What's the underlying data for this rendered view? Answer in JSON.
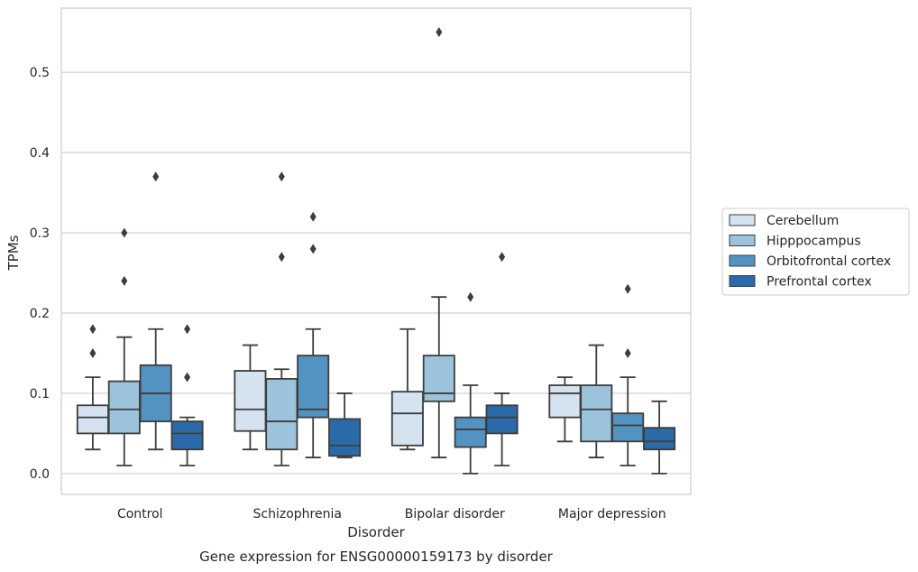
{
  "chart_data": {
    "type": "box",
    "caption": "Gene expression for ENSG00000159173 by disorder",
    "xlabel": "Disorder",
    "ylabel": "TPMs",
    "ylim": [
      -0.026,
      0.58
    ],
    "yticks": [
      0.0,
      0.1,
      0.2,
      0.3,
      0.4,
      0.5
    ],
    "ytick_labels": [
      "0.0",
      "0.1",
      "0.2",
      "0.3",
      "0.4",
      "0.5"
    ],
    "grid": "horizontal",
    "legend_position": "right",
    "categories": [
      "Control",
      "Schizophrenia",
      "Bipolar disorder",
      "Major depression"
    ],
    "series": [
      {
        "name": "Cerebellum",
        "color": "#d5e3f1",
        "boxes": [
          {
            "whislo": 0.03,
            "q1": 0.05,
            "med": 0.07,
            "q3": 0.085,
            "whishi": 0.12,
            "fliers": [
              0.15,
              0.18
            ]
          },
          {
            "whislo": 0.03,
            "q1": 0.053,
            "med": 0.08,
            "q3": 0.128,
            "whishi": 0.16,
            "fliers": []
          },
          {
            "whislo": 0.03,
            "q1": 0.035,
            "med": 0.075,
            "q3": 0.102,
            "whishi": 0.18,
            "fliers": []
          },
          {
            "whislo": 0.04,
            "q1": 0.07,
            "med": 0.1,
            "q3": 0.11,
            "whishi": 0.12,
            "fliers": []
          }
        ]
      },
      {
        "name": "Hipppocampus",
        "color": "#9bc3db",
        "boxes": [
          {
            "whislo": 0.01,
            "q1": 0.05,
            "med": 0.08,
            "q3": 0.115,
            "whishi": 0.17,
            "fliers": [
              0.24,
              0.3
            ]
          },
          {
            "whislo": 0.01,
            "q1": 0.03,
            "med": 0.065,
            "q3": 0.118,
            "whishi": 0.13,
            "fliers": [
              0.27,
              0.37
            ]
          },
          {
            "whislo": 0.02,
            "q1": 0.09,
            "med": 0.1,
            "q3": 0.147,
            "whishi": 0.22,
            "fliers": [
              0.55
            ]
          },
          {
            "whislo": 0.02,
            "q1": 0.04,
            "med": 0.08,
            "q3": 0.11,
            "whishi": 0.16,
            "fliers": []
          }
        ]
      },
      {
        "name": "Orbitofrontal cortex",
        "color": "#5393c2",
        "boxes": [
          {
            "whislo": 0.03,
            "q1": 0.065,
            "med": 0.1,
            "q3": 0.135,
            "whishi": 0.18,
            "fliers": [
              0.37
            ]
          },
          {
            "whislo": 0.02,
            "q1": 0.07,
            "med": 0.08,
            "q3": 0.147,
            "whishi": 0.18,
            "fliers": [
              0.28,
              0.32
            ]
          },
          {
            "whislo": 0.0,
            "q1": 0.033,
            "med": 0.055,
            "q3": 0.07,
            "whishi": 0.11,
            "fliers": [
              0.22
            ]
          },
          {
            "whislo": 0.01,
            "q1": 0.04,
            "med": 0.06,
            "q3": 0.075,
            "whishi": 0.12,
            "fliers": [
              0.15,
              0.23
            ]
          }
        ]
      },
      {
        "name": "Prefrontal cortex",
        "color": "#2b6aa8",
        "boxes": [
          {
            "whislo": 0.01,
            "q1": 0.03,
            "med": 0.05,
            "q3": 0.065,
            "whishi": 0.07,
            "fliers": [
              0.12,
              0.18
            ]
          },
          {
            "whislo": 0.02,
            "q1": 0.022,
            "med": 0.035,
            "q3": 0.068,
            "whishi": 0.1,
            "fliers": []
          },
          {
            "whislo": 0.01,
            "q1": 0.05,
            "med": 0.07,
            "q3": 0.085,
            "whishi": 0.1,
            "fliers": [
              0.27
            ]
          },
          {
            "whislo": 0.0,
            "q1": 0.03,
            "med": 0.04,
            "q3": 0.057,
            "whishi": 0.09,
            "fliers": []
          }
        ]
      }
    ]
  }
}
